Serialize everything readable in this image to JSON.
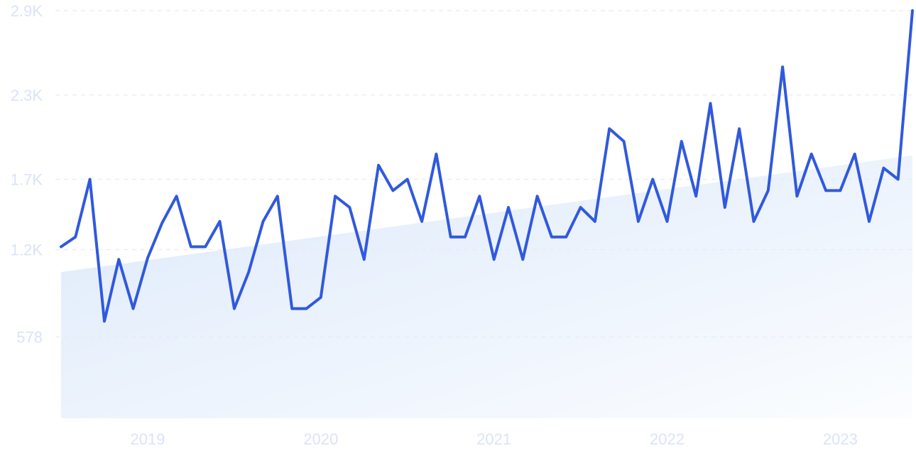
{
  "chart_data": {
    "type": "line",
    "title": "",
    "xlabel": "",
    "ylabel": "",
    "ylim": [
      0,
      2900
    ],
    "y_ticks": [
      {
        "value": 578,
        "label": "578"
      },
      {
        "value": 1200,
        "label": "1.2K"
      },
      {
        "value": 1700,
        "label": "1.7K"
      },
      {
        "value": 2300,
        "label": "2.3K"
      },
      {
        "value": 2900,
        "label": "2.9K"
      }
    ],
    "x_ticks": [
      {
        "x": "2019-01",
        "label": "2019"
      },
      {
        "x": "2020-01",
        "label": "2020"
      },
      {
        "x": "2021-01",
        "label": "2021"
      },
      {
        "x": "2022-01",
        "label": "2022"
      },
      {
        "x": "2023-01",
        "label": "2023"
      }
    ],
    "grid": true,
    "legend": "none",
    "colors": {
      "line": "#3059dd",
      "trend_fill": "#dde9fa",
      "grid": "#e6ebf5",
      "tick_text": "#dbe3f7"
    },
    "trend": {
      "start": {
        "x": "2018-07",
        "y": 1040
      },
      "end": {
        "x": "2023-06",
        "y": 1870
      }
    },
    "series": [
      {
        "values": [
          {
            "x": "2018-07",
            "y": 1220
          },
          {
            "x": "2018-08",
            "y": 1290
          },
          {
            "x": "2018-09",
            "y": 1700
          },
          {
            "x": "2018-10",
            "y": 690
          },
          {
            "x": "2018-11",
            "y": 1130
          },
          {
            "x": "2018-12",
            "y": 780
          },
          {
            "x": "2019-01",
            "y": 1140
          },
          {
            "x": "2019-02",
            "y": 1390
          },
          {
            "x": "2019-03",
            "y": 1580
          },
          {
            "x": "2019-04",
            "y": 1220
          },
          {
            "x": "2019-05",
            "y": 1220
          },
          {
            "x": "2019-06",
            "y": 1400
          },
          {
            "x": "2019-07",
            "y": 780
          },
          {
            "x": "2019-08",
            "y": 1040
          },
          {
            "x": "2019-09",
            "y": 1400
          },
          {
            "x": "2019-10",
            "y": 1580
          },
          {
            "x": "2019-11",
            "y": 780
          },
          {
            "x": "2019-12",
            "y": 780
          },
          {
            "x": "2020-01",
            "y": 860
          },
          {
            "x": "2020-02",
            "y": 1580
          },
          {
            "x": "2020-03",
            "y": 1500
          },
          {
            "x": "2020-04",
            "y": 1130
          },
          {
            "x": "2020-05",
            "y": 1800
          },
          {
            "x": "2020-06",
            "y": 1620
          },
          {
            "x": "2020-07",
            "y": 1700
          },
          {
            "x": "2020-08",
            "y": 1400
          },
          {
            "x": "2020-09",
            "y": 1880
          },
          {
            "x": "2020-10",
            "y": 1290
          },
          {
            "x": "2020-11",
            "y": 1290
          },
          {
            "x": "2020-12",
            "y": 1580
          },
          {
            "x": "2021-01",
            "y": 1130
          },
          {
            "x": "2021-02",
            "y": 1500
          },
          {
            "x": "2021-03",
            "y": 1130
          },
          {
            "x": "2021-04",
            "y": 1580
          },
          {
            "x": "2021-05",
            "y": 1290
          },
          {
            "x": "2021-06",
            "y": 1290
          },
          {
            "x": "2021-07",
            "y": 1500
          },
          {
            "x": "2021-08",
            "y": 1400
          },
          {
            "x": "2021-09",
            "y": 2060
          },
          {
            "x": "2021-10",
            "y": 1970
          },
          {
            "x": "2021-11",
            "y": 1400
          },
          {
            "x": "2021-12",
            "y": 1700
          },
          {
            "x": "2022-01",
            "y": 1400
          },
          {
            "x": "2022-02",
            "y": 1970
          },
          {
            "x": "2022-03",
            "y": 1580
          },
          {
            "x": "2022-04",
            "y": 2240
          },
          {
            "x": "2022-05",
            "y": 1500
          },
          {
            "x": "2022-06",
            "y": 2060
          },
          {
            "x": "2022-07",
            "y": 1400
          },
          {
            "x": "2022-08",
            "y": 1620
          },
          {
            "x": "2022-09",
            "y": 2500
          },
          {
            "x": "2022-10",
            "y": 1580
          },
          {
            "x": "2022-11",
            "y": 1880
          },
          {
            "x": "2022-12",
            "y": 1620
          },
          {
            "x": "2023-01",
            "y": 1620
          },
          {
            "x": "2023-02",
            "y": 1880
          },
          {
            "x": "2023-03",
            "y": 1400
          },
          {
            "x": "2023-04",
            "y": 1780
          },
          {
            "x": "2023-05",
            "y": 1700
          },
          {
            "x": "2023-06",
            "y": 2900
          }
        ]
      }
    ]
  }
}
